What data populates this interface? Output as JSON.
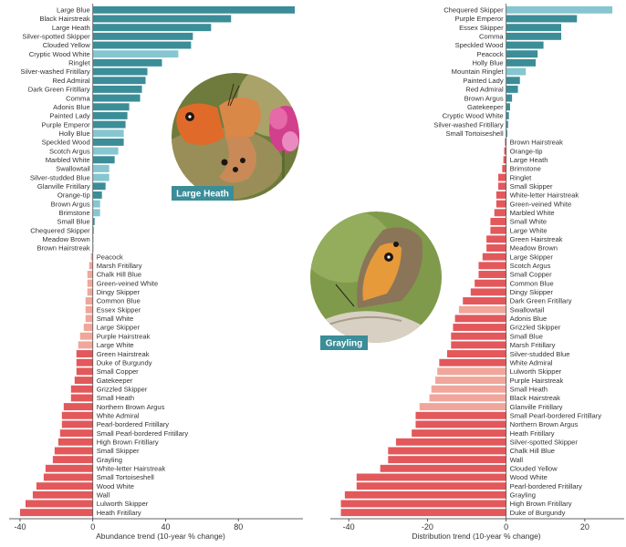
{
  "colors": {
    "teal": "#3b8d98",
    "teal_light": "#86c6d0",
    "red": "#e2585b",
    "red_light": "#f0a69a",
    "badge": "#3b8d98"
  },
  "photos": {
    "large_heath_label": "Large Heath",
    "grayling_label": "Grayling"
  },
  "chart_data": [
    {
      "type": "bar",
      "orientation": "horizontal",
      "xlabel": "Abundance trend (10-year % change)",
      "xlim": [
        -44,
        112
      ],
      "xticks": [
        -40,
        0,
        40,
        80
      ],
      "grid": false,
      "categories": [
        "Large Blue",
        "Black Hairstreak",
        "Large Heath",
        "Silver-spotted Skipper",
        "Clouded Yellow",
        "Cryptic Wood White",
        "Ringlet",
        "Silver-washed Fritillary",
        "Red Admiral",
        "Dark Green Fritillary",
        "Comma",
        "Adonis Blue",
        "Painted Lady",
        "Purple Emperor",
        "Holly Blue",
        "Speckled Wood",
        "Scotch Argus",
        "Marbled White",
        "Swallowtail",
        "Silver-studded Blue",
        "Glanville Fritillary",
        "Orange-tip",
        "Brown Argus",
        "Brimstone",
        "Small Blue",
        "Chequered Skipper",
        "Meadow Brown",
        "Brown Hairstreak",
        "Peacock",
        "Marsh Fritillary",
        "Chalk Hill Blue",
        "Green-veined White",
        "Dingy Skipper",
        "Common Blue",
        "Essex Skipper",
        "Small White",
        "Large Skipper",
        "Purple Hairstreak",
        "Large White",
        "Green Hairstreak",
        "Duke of Burgundy",
        "Small Copper",
        "Gatekeeper",
        "Grizzled Skipper",
        "Small Heath",
        "Northern Brown Argus",
        "White Admiral",
        "Pearl-bordered Fritillary",
        "Small Pearl-bordered Fritillary",
        "High Brown Fritillary",
        "Small Skipper",
        "Grayling",
        "White-letter Hairstreak",
        "Small Tortoiseshell",
        "Wood White",
        "Wall",
        "Lulworth Skipper",
        "Heath Fritillary"
      ],
      "values": [
        111,
        76,
        65,
        55,
        54,
        47,
        38,
        30,
        29,
        27,
        26,
        20,
        19,
        18,
        17,
        17,
        14,
        12,
        9,
        9,
        7,
        5,
        4,
        4,
        1,
        0.5,
        0.3,
        0.2,
        -1,
        -2,
        -3,
        -3,
        -3,
        -4,
        -4,
        -4,
        -5,
        -7,
        -8,
        -9,
        -9,
        -9,
        -10,
        -12,
        -12,
        -16,
        -17,
        -17,
        -18,
        -19,
        -21,
        -22,
        -26,
        -27,
        -31,
        -33,
        -37,
        -40
      ],
      "light": [
        false,
        false,
        false,
        false,
        false,
        true,
        false,
        false,
        false,
        false,
        false,
        false,
        false,
        false,
        true,
        false,
        true,
        false,
        true,
        true,
        false,
        false,
        true,
        true,
        false,
        false,
        false,
        false,
        true,
        true,
        true,
        true,
        true,
        true,
        true,
        true,
        true,
        true,
        true,
        false,
        false,
        false,
        false,
        false,
        false,
        false,
        false,
        false,
        false,
        false,
        false,
        false,
        false,
        false,
        false,
        false,
        false,
        false
      ]
    },
    {
      "type": "bar",
      "orientation": "horizontal",
      "xlabel": "Distribution trend (10-year % change)",
      "xlim": [
        -47,
        30
      ],
      "xticks": [
        -40,
        -20,
        0,
        20
      ],
      "grid": false,
      "categories": [
        "Chequered Skipper",
        "Purple Emperor",
        "Essex Skipper",
        "Comma",
        "Speckled Wood",
        "Peacock",
        "Holly Blue",
        "Mountain Ringlet",
        "Painted Lady",
        "Red Admiral",
        "Brown Argus",
        "Gatekeeper",
        "Cryptic Wood White",
        "Silver-washed Fritillary",
        "Small Tortoiseshell",
        "Brown Hairstreak",
        "Orange-tip",
        "Large Heath",
        "Brimstone",
        "Ringlet",
        "Small Skipper",
        "White-letter Hairstreak",
        "Green-veined White",
        "Marbled White",
        "Small White",
        "Large White",
        "Green Hairstreak",
        "Meadow Brown",
        "Large Skipper",
        "Scotch Argus",
        "Small Copper",
        "Common Blue",
        "Dingy Skipper",
        "Dark Green Fritillary",
        "Swallowtail",
        "Adonis Blue",
        "Grizzled Skipper",
        "Small Blue",
        "Marsh Fritillary",
        "Silver-studded Blue",
        "White Admiral",
        "Lulworth Skipper",
        "Purple Hairstreak",
        "Small Heath",
        "Black Hairstreak",
        "Glanville Fritillary",
        "Small Pearl-bordered Fritillary",
        "Northern Brown Argus",
        "Heath Fritillary",
        "Silver-spotted Skipper",
        "Chalk Hill Blue",
        "Wall",
        "Clouded Yellow",
        "Wood White",
        "Pearl-bordered Fritillary",
        "Grayling",
        "High Brown Fritillary",
        "Duke of Burgundy"
      ],
      "values": [
        27,
        18,
        14,
        14,
        9.5,
        8,
        7.5,
        5,
        3.5,
        3,
        1.5,
        1,
        0.7,
        0.5,
        0.3,
        -0.3,
        -0.5,
        -0.7,
        -1,
        -2,
        -2,
        -2.5,
        -2.5,
        -3,
        -4,
        -4,
        -5,
        -5,
        -6,
        -7,
        -7,
        -8,
        -9,
        -11,
        -12,
        -13,
        -13.5,
        -14,
        -14,
        -15,
        -17,
        -17.5,
        -18,
        -19,
        -19.5,
        -22,
        -23,
        -23,
        -24,
        -28,
        -30,
        -30,
        -32,
        -38,
        -38,
        -41,
        -42,
        -42
      ],
      "light": [
        true,
        false,
        false,
        false,
        false,
        false,
        false,
        true,
        false,
        false,
        false,
        false,
        false,
        false,
        false,
        false,
        false,
        false,
        false,
        false,
        false,
        false,
        false,
        false,
        false,
        false,
        false,
        false,
        false,
        false,
        false,
        false,
        false,
        false,
        true,
        false,
        false,
        false,
        false,
        false,
        false,
        true,
        true,
        true,
        true,
        true,
        false,
        false,
        false,
        false,
        false,
        false,
        false,
        false,
        false,
        false,
        false,
        false
      ]
    }
  ]
}
